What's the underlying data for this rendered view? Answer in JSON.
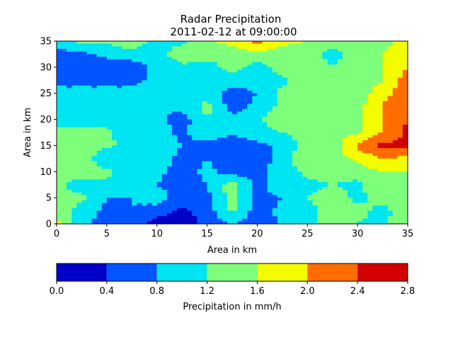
{
  "chart_data": {
    "type": "heatmap",
    "title": "Radar Precipitation",
    "subtitle": "2011-02-12 at 09:00:00",
    "xlabel": "Area in km",
    "ylabel": "Area in km",
    "xlim": [
      0,
      35
    ],
    "ylim": [
      0,
      35
    ],
    "xticks": [
      "0",
      "5",
      "10",
      "15",
      "20",
      "25",
      "30",
      "35"
    ],
    "yticks": [
      "0",
      "5",
      "10",
      "15",
      "20",
      "25",
      "30",
      "35"
    ],
    "grid": false,
    "colorbar": {
      "label": "Precipitation in mm/h",
      "levels": [
        0.0,
        0.4,
        0.8,
        1.2,
        1.6,
        2.0,
        2.4,
        2.8
      ],
      "tick_labels": [
        "0.0",
        "0.4",
        "0.8",
        "1.2",
        "1.6",
        "2.0",
        "2.4",
        "2.8"
      ],
      "colors": [
        "#0000c8",
        "#0055ff",
        "#00e5f2",
        "#7dff7b",
        "#f4fc00",
        "#ff6d00",
        "#d20000"
      ]
    },
    "grid_x": [
      0,
      2.5,
      5,
      7.5,
      10,
      12.5,
      15,
      17.5,
      20,
      22.5,
      25,
      27.5,
      30,
      32.5,
      35
    ],
    "grid_y": [
      35,
      32.5,
      30,
      27.5,
      25,
      22.5,
      20,
      17.5,
      15,
      12.5,
      10,
      7.5,
      5,
      2.5,
      0
    ],
    "values": [
      [
        1.0,
        1.3,
        1.3,
        1.5,
        1.0,
        1.1,
        1.5,
        1.8,
        2.1,
        1.7,
        1.6,
        1.5,
        1.2,
        1.5,
        1.7
      ],
      [
        0.6,
        0.7,
        0.9,
        1.0,
        1.0,
        1.5,
        1.4,
        1.3,
        1.5,
        1.4,
        1.5,
        1.0,
        1.5,
        1.6,
        1.9
      ],
      [
        0.6,
        0.6,
        0.6,
        0.6,
        0.9,
        1.1,
        1.0,
        1.4,
        1.0,
        1.4,
        1.4,
        1.2,
        1.5,
        1.6,
        2.0
      ],
      [
        0.7,
        0.7,
        0.7,
        0.7,
        0.9,
        0.9,
        1.0,
        1.0,
        1.0,
        1.1,
        1.4,
        1.5,
        1.3,
        1.6,
        2.2
      ],
      [
        0.9,
        0.9,
        0.9,
        0.9,
        1.0,
        0.9,
        1.1,
        0.6,
        0.8,
        1.3,
        1.5,
        1.3,
        1.3,
        1.9,
        2.2
      ],
      [
        1.1,
        0.9,
        0.9,
        1.1,
        0.9,
        0.9,
        1.3,
        0.6,
        0.9,
        1.3,
        1.5,
        1.5,
        1.5,
        2.0,
        2.3
      ],
      [
        1.0,
        1.0,
        1.0,
        1.0,
        0.9,
        0.6,
        1.2,
        0.9,
        1.1,
        1.5,
        1.4,
        1.5,
        1.5,
        2.0,
        2.4
      ],
      [
        1.3,
        1.3,
        1.3,
        0.9,
        1.0,
        0.7,
        1.1,
        0.9,
        1.0,
        1.2,
        1.4,
        1.5,
        1.5,
        2.0,
        2.5
      ],
      [
        1.4,
        1.5,
        1.3,
        1.0,
        1.0,
        0.8,
        0.6,
        0.5,
        0.7,
        0.9,
        1.4,
        1.4,
        2.1,
        2.5,
        2.5
      ],
      [
        1.4,
        1.5,
        0.8,
        1.0,
        1.0,
        0.7,
        0.8,
        0.6,
        0.5,
        1.0,
        1.5,
        1.4,
        1.7,
        2.0,
        1.9
      ],
      [
        1.5,
        1.4,
        1.3,
        1.0,
        0.9,
        0.6,
        0.9,
        0.6,
        0.7,
        1.0,
        1.3,
        1.4,
        1.4,
        1.6,
        1.6
      ],
      [
        1.3,
        1.0,
        1.1,
        1.0,
        0.8,
        0.6,
        0.8,
        1.4,
        0.7,
        1.0,
        1.1,
        1.2,
        1.1,
        1.6,
        1.5
      ],
      [
        1.3,
        1.3,
        0.8,
        0.8,
        1.0,
        0.6,
        0.7,
        1.4,
        0.7,
        0.8,
        1.2,
        1.4,
        1.1,
        1.3,
        1.4
      ],
      [
        1.6,
        1.0,
        0.7,
        0.8,
        0.6,
        0.3,
        0.6,
        1.3,
        0.6,
        0.9,
        1.1,
        1.3,
        1.3,
        1.1,
        1.4
      ],
      [
        1.7,
        0.9,
        0.6,
        0.6,
        0.2,
        0.2,
        0.5,
        0.8,
        0.5,
        0.9,
        1.0,
        1.4,
        1.2,
        1.1,
        1.5
      ]
    ]
  }
}
